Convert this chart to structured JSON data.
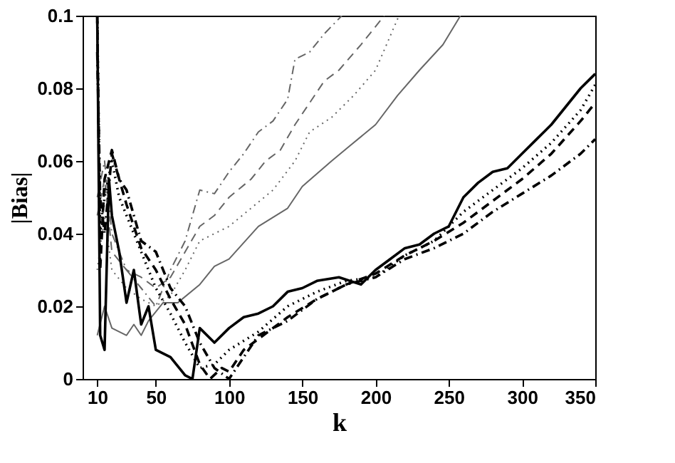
{
  "chart_data": {
    "type": "line",
    "xlabel": "k",
    "ylabel": "|Bias|",
    "xlim": [
      0,
      350
    ],
    "xticks": [
      10,
      50,
      100,
      150,
      200,
      250,
      300,
      350
    ],
    "ylim": [
      0,
      0.1
    ],
    "yticks": [
      0,
      0.02,
      0.04,
      0.06,
      0.08,
      0.1
    ],
    "grid": false,
    "series": [
      {
        "color": "#666666",
        "line_style": "solid",
        "x": [
          10,
          15,
          20,
          30,
          35,
          40,
          45,
          55,
          65,
          80,
          90,
          100,
          120,
          140,
          150,
          170,
          182,
          200,
          215,
          230,
          246,
          258
        ],
        "values": [
          0.012,
          0.02,
          0.014,
          0.012,
          0.015,
          0.012,
          0.016,
          0.021,
          0.021,
          0.026,
          0.031,
          0.033,
          0.042,
          0.047,
          0.053,
          0.06,
          0.064,
          0.07,
          0.078,
          0.085,
          0.092,
          0.1
        ]
      },
      {
        "color": "#666666",
        "line_style": "dotted",
        "x": [
          10,
          15,
          20,
          30,
          40,
          50,
          60,
          70,
          80,
          90,
          100,
          115,
          130,
          145,
          155,
          170,
          185,
          200,
          216
        ],
        "values": [
          0.03,
          0.045,
          0.03,
          0.025,
          0.022,
          0.02,
          0.023,
          0.03,
          0.038,
          0.04,
          0.042,
          0.047,
          0.052,
          0.06,
          0.068,
          0.072,
          0.078,
          0.085,
          0.1
        ]
      },
      {
        "color": "#666666",
        "line_style": "dashed",
        "x": [
          10,
          15,
          20,
          30,
          40,
          50,
          60,
          70,
          80,
          90,
          100,
          115,
          125,
          135,
          145,
          155,
          165,
          175,
          190,
          206
        ],
        "values": [
          0.045,
          0.055,
          0.035,
          0.03,
          0.028,
          0.025,
          0.028,
          0.035,
          0.042,
          0.045,
          0.05,
          0.055,
          0.06,
          0.063,
          0.07,
          0.076,
          0.082,
          0.085,
          0.092,
          0.1
        ]
      },
      {
        "color": "#666666",
        "line_style": "dashdot",
        "x": [
          10,
          15,
          20,
          30,
          40,
          50,
          60,
          70,
          80,
          90,
          100,
          110,
          120,
          130,
          140,
          145,
          155,
          165,
          177
        ],
        "values": [
          0.05,
          0.06,
          0.04,
          0.03,
          0.025,
          0.02,
          0.03,
          0.038,
          0.052,
          0.051,
          0.057,
          0.062,
          0.068,
          0.071,
          0.077,
          0.088,
          0.09,
          0.095,
          0.1
        ]
      },
      {
        "color": "#000000",
        "line_style": "solid",
        "x": [
          10,
          12,
          15,
          18,
          20,
          25,
          30,
          35,
          40,
          45,
          50,
          60,
          70,
          75,
          80,
          90,
          100,
          110,
          120,
          130,
          140,
          150,
          160,
          175,
          190,
          200,
          210,
          220,
          230,
          240,
          250,
          260,
          270,
          280,
          290,
          300,
          310,
          320,
          330,
          340,
          350
        ],
        "values": [
          0.1,
          0.012,
          0.008,
          0.055,
          0.045,
          0.035,
          0.021,
          0.03,
          0.015,
          0.02,
          0.008,
          0.006,
          0.001,
          0.0,
          0.014,
          0.01,
          0.014,
          0.017,
          0.018,
          0.02,
          0.024,
          0.025,
          0.027,
          0.028,
          0.026,
          0.03,
          0.033,
          0.036,
          0.037,
          0.04,
          0.042,
          0.05,
          0.054,
          0.057,
          0.058,
          0.062,
          0.066,
          0.07,
          0.075,
          0.08,
          0.084
        ]
      },
      {
        "color": "#000000",
        "line_style": "dotted",
        "x": [
          10,
          12,
          15,
          20,
          25,
          30,
          40,
          50,
          60,
          70,
          80,
          90,
          100,
          120,
          140,
          160,
          180,
          200,
          220,
          240,
          260,
          280,
          300,
          320,
          340,
          350
        ],
        "values": [
          0.1,
          0.04,
          0.05,
          0.06,
          0.05,
          0.045,
          0.035,
          0.025,
          0.018,
          0.01,
          0.003,
          0.004,
          0.008,
          0.013,
          0.02,
          0.024,
          0.027,
          0.028,
          0.034,
          0.038,
          0.046,
          0.052,
          0.058,
          0.065,
          0.074,
          0.081
        ]
      },
      {
        "color": "#000000",
        "line_style": "dashed",
        "x": [
          10,
          12,
          15,
          20,
          25,
          30,
          40,
          50,
          60,
          70,
          80,
          87,
          95,
          100,
          110,
          120,
          140,
          160,
          180,
          200,
          220,
          240,
          260,
          280,
          300,
          320,
          340,
          350
        ],
        "values": [
          0.1,
          0.03,
          0.055,
          0.063,
          0.055,
          0.048,
          0.036,
          0.03,
          0.022,
          0.015,
          0.004,
          0.0,
          0.003,
          0.002,
          0.008,
          0.011,
          0.017,
          0.022,
          0.026,
          0.029,
          0.034,
          0.038,
          0.043,
          0.049,
          0.055,
          0.062,
          0.071,
          0.076
        ]
      },
      {
        "color": "#000000",
        "line_style": "dashdot",
        "x": [
          10,
          12,
          15,
          20,
          25,
          30,
          35,
          40,
          50,
          60,
          70,
          80,
          90,
          100,
          110,
          120,
          140,
          160,
          180,
          200,
          220,
          240,
          260,
          280,
          300,
          320,
          340,
          350
        ],
        "values": [
          0.09,
          0.05,
          0.04,
          0.062,
          0.055,
          0.052,
          0.045,
          0.038,
          0.035,
          0.025,
          0.02,
          0.01,
          0.003,
          0.0,
          0.006,
          0.012,
          0.016,
          0.022,
          0.026,
          0.028,
          0.033,
          0.036,
          0.04,
          0.046,
          0.051,
          0.056,
          0.062,
          0.066
        ]
      }
    ]
  }
}
